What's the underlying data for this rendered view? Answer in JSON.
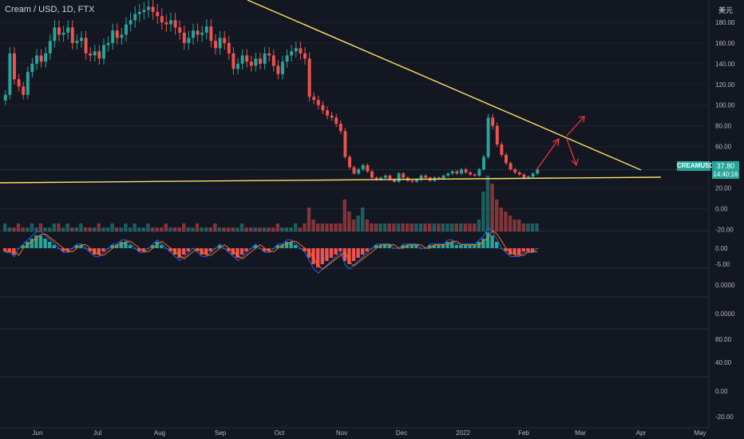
{
  "header": {
    "symbol_line": "Cream / USD, 1D, FTX",
    "currency": "美元"
  },
  "price_tag": {
    "symbol": "CREAMUSD",
    "price": "37.80",
    "countdown": "14:40:16"
  },
  "colors": {
    "up": "#26a69a",
    "down": "#ef5350",
    "trendline": "#ffe066",
    "arrow": "#f23645",
    "bg": "#131722",
    "grid": "#1e222d",
    "axis_text": "#b2b5be"
  },
  "chart_data": [
    {
      "type": "candlestick",
      "pane": "price",
      "x_labels": [
        "Jun",
        "Jul",
        "Aug",
        "Sep",
        "Oct",
        "Nov",
        "Dec",
        "2022",
        "Feb",
        "Mar",
        "Apr",
        "May"
      ],
      "y_ticks": [
        "180.00",
        "160.00",
        "140.00",
        "120.00",
        "100.00",
        "80.00",
        "60.00",
        "20.00",
        "0.00",
        "-20.00"
      ],
      "y_tick_values": [
        180,
        160,
        140,
        120,
        100,
        80,
        60,
        20,
        0,
        -20
      ],
      "ylim": [
        -22,
        200
      ],
      "last_price": 37.8,
      "closes": [
        110,
        150,
        125,
        118,
        110,
        132,
        140,
        148,
        142,
        150,
        162,
        175,
        168,
        170,
        175,
        160,
        162,
        165,
        150,
        148,
        152,
        145,
        158,
        160,
        172,
        165,
        168,
        178,
        182,
        188,
        190,
        192,
        195,
        190,
        186,
        180,
        178,
        182,
        175,
        170,
        160,
        165,
        172,
        168,
        170,
        176,
        162,
        155,
        165,
        160,
        150,
        135,
        140,
        148,
        142,
        138,
        145,
        140,
        150,
        148,
        138,
        130,
        142,
        148,
        152,
        155,
        150,
        145,
        108,
        105,
        100,
        95,
        90,
        88,
        82,
        75,
        50,
        40,
        34,
        38,
        42,
        36,
        30,
        28,
        30,
        32,
        28,
        26,
        34,
        30,
        27,
        26,
        28,
        32,
        30,
        27,
        30,
        29,
        32,
        34,
        36,
        34,
        38,
        35,
        33,
        32,
        38,
        50,
        88,
        80,
        62,
        52,
        44,
        38,
        35,
        33,
        30,
        31,
        34,
        37.8
      ],
      "annotations": [
        {
          "type": "trendline",
          "label": "descending resistance",
          "from": [
            0.33,
            199
          ],
          "to": [
            1.0,
            45
          ]
        },
        {
          "type": "horizontal",
          "label": "support",
          "value": 30
        }
      ]
    },
    {
      "type": "bar",
      "pane": "volume",
      "values": [
        2,
        1,
        1,
        2,
        1,
        1,
        2,
        1,
        2,
        1,
        1,
        2,
        2,
        1,
        2,
        1,
        1,
        2,
        1,
        1,
        1,
        2,
        1,
        1,
        2,
        1,
        1,
        2,
        1,
        2,
        1,
        1,
        2,
        1,
        1,
        1,
        2,
        1,
        1,
        1,
        2,
        1,
        1,
        2,
        1,
        1,
        1,
        2,
        1,
        1,
        1,
        1,
        1,
        2,
        1,
        1,
        1,
        1,
        1,
        1,
        1,
        2,
        1,
        1,
        1,
        2,
        1,
        2,
        6,
        3,
        2,
        2,
        2,
        2,
        2,
        2,
        8,
        5,
        3,
        4,
        6,
        3,
        2,
        2,
        2,
        2,
        2,
        2,
        2,
        2,
        2,
        2,
        2,
        2,
        2,
        2,
        2,
        2,
        2,
        2,
        2,
        2,
        2,
        2,
        2,
        2,
        3,
        10,
        14,
        12,
        8,
        6,
        5,
        4,
        3,
        3,
        2,
        2,
        2,
        2
      ]
    },
    {
      "type": "bar",
      "pane": "macd",
      "y_ticks": [
        "0.00",
        "-5.00"
      ],
      "values": [
        -1,
        -1,
        -2,
        0,
        1,
        2,
        3,
        4,
        4,
        3,
        2,
        1,
        0,
        -1,
        -1,
        0,
        1,
        1,
        0,
        -1,
        -2,
        -2,
        -1,
        0,
        1,
        1,
        2,
        2,
        1,
        0,
        -1,
        -1,
        0,
        1,
        2,
        1,
        0,
        -1,
        -2,
        -3,
        -2,
        -1,
        0,
        -1,
        -2,
        -2,
        -1,
        0,
        1,
        0,
        -1,
        -2,
        -3,
        -2,
        -1,
        0,
        1,
        0,
        -1,
        -1,
        0,
        1,
        1,
        2,
        2,
        1,
        0,
        -1,
        -3,
        -5,
        -6,
        -5,
        -4,
        -3,
        -2,
        -1,
        -4,
        -5,
        -4,
        -3,
        -2,
        -1,
        0,
        1,
        1,
        1,
        1,
        0,
        0,
        1,
        1,
        1,
        1,
        0,
        0,
        1,
        1,
        1,
        1,
        2,
        2,
        1,
        1,
        1,
        1,
        1,
        2,
        3,
        5,
        4,
        2,
        0,
        -1,
        -2,
        -2,
        -2,
        -1,
        -1,
        -1,
        0
      ]
    },
    {
      "type": "line",
      "pane": "rsi",
      "y_ticks": [
        "0.0000",
        "0.0000"
      ]
    },
    {
      "type": "line",
      "pane": "osc",
      "y_ticks": [
        "80.00",
        "40.00"
      ]
    },
    {
      "type": "line",
      "pane": "osc2",
      "y_ticks": [
        "0.00",
        "-20.00"
      ]
    }
  ]
}
